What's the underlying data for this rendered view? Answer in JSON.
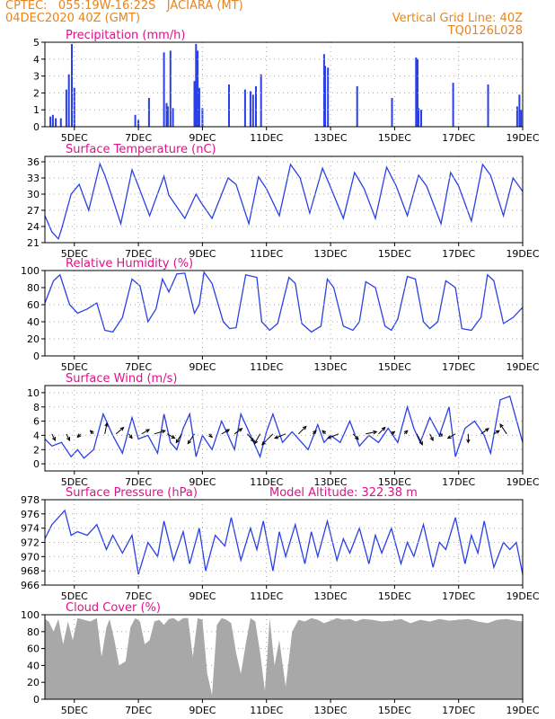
{
  "header": {
    "left_line1": "CPTEC:   055:19W-16:22S   JACIARA (MT)",
    "left_line2": "04DEC2020 40Z (GMT)",
    "right_line1": "Vertical Grid Line: 40Z",
    "right_line2": "TQ0126L028"
  },
  "colors": {
    "header": "#e8841a",
    "title": "#e0118a",
    "line": "#2a3fe6",
    "bar": "#2a3fe6",
    "cloud": "#a8a8a8",
    "grid": "#aaaaaa",
    "arrow": "#000000"
  },
  "x_axis": {
    "tick_labels": [
      "5DEC",
      "7DEC",
      "9DEC",
      "11DEC",
      "13DEC",
      "15DEC",
      "17DEC",
      "19DEC"
    ],
    "start_day": 4.08,
    "end_day": 19.0
  },
  "chart_data": [
    {
      "id": "precip",
      "type": "bar",
      "title": "Precipitation (mm/h)",
      "ylim": [
        0,
        5
      ],
      "yticks": [
        0,
        1,
        2,
        3,
        4,
        5
      ],
      "x": [
        4.25,
        4.33,
        4.42,
        4.58,
        4.75,
        4.83,
        4.92,
        5.0,
        6.9,
        7.0,
        7.33,
        7.8,
        7.88,
        7.92,
        8.0,
        8.08,
        8.75,
        8.8,
        8.85,
        8.9,
        9.0,
        9.83,
        10.33,
        10.5,
        10.58,
        10.67,
        10.83,
        12.8,
        12.83,
        12.92,
        13.83,
        14.92,
        15.67,
        15.72,
        15.75,
        15.83,
        16.83,
        17.92,
        18.83,
        18.9,
        18.95
      ],
      "values": [
        0.6,
        0.7,
        0.5,
        0.5,
        2.2,
        3.1,
        4.9,
        2.3,
        0.7,
        0.4,
        1.7,
        4.4,
        1.4,
        1.2,
        4.5,
        1.1,
        2.7,
        4.9,
        4.5,
        2.3,
        1.1,
        2.5,
        2.2,
        2.1,
        1.9,
        2.4,
        3.1,
        4.3,
        3.6,
        3.5,
        2.4,
        1.7,
        4.1,
        4.0,
        1.1,
        1.0,
        2.6,
        2.5,
        1.2,
        1.9,
        1.0
      ]
    },
    {
      "id": "temp",
      "type": "line",
      "title": "Surface Temperature (nC)",
      "ylim": [
        21,
        37
      ],
      "yticks": [
        21,
        24,
        27,
        30,
        33,
        36
      ],
      "x": [
        4.08,
        4.3,
        4.5,
        4.6,
        4.9,
        5.15,
        5.45,
        5.8,
        5.95,
        6.15,
        6.45,
        6.8,
        7.0,
        7.35,
        7.8,
        7.95,
        8.45,
        8.8,
        8.95,
        9.3,
        9.8,
        10.05,
        10.45,
        10.75,
        11.0,
        11.4,
        11.75,
        12.05,
        12.35,
        12.75,
        12.95,
        13.4,
        13.75,
        14.05,
        14.4,
        14.75,
        15.05,
        15.4,
        15.75,
        16.0,
        16.45,
        16.75,
        17.0,
        17.4,
        17.75,
        18.0,
        18.4,
        18.7,
        19.0
      ],
      "values": [
        26.0,
        23.0,
        21.7,
        23.5,
        30.0,
        31.8,
        27.0,
        35.6,
        33.5,
        30.0,
        24.5,
        34.5,
        31.5,
        26.0,
        33.3,
        29.8,
        25.5,
        30.0,
        28.5,
        25.5,
        33.0,
        31.8,
        24.5,
        33.2,
        31.0,
        26.0,
        35.5,
        33.0,
        26.5,
        34.8,
        32.0,
        25.5,
        34.0,
        31.0,
        25.5,
        35.0,
        31.5,
        26.0,
        33.5,
        31.5,
        24.5,
        34.0,
        31.5,
        25.0,
        35.5,
        33.5,
        26.0,
        33.0,
        30.5
      ]
    },
    {
      "id": "rh",
      "type": "line",
      "title": "Relative Humidity (%)",
      "ylim": [
        0,
        100
      ],
      "yticks": [
        0,
        20,
        40,
        60,
        80,
        100
      ],
      "x": [
        4.08,
        4.35,
        4.55,
        4.85,
        5.1,
        5.4,
        5.7,
        5.95,
        6.2,
        6.5,
        6.8,
        7.05,
        7.3,
        7.55,
        7.75,
        7.95,
        8.2,
        8.45,
        8.75,
        8.9,
        9.05,
        9.3,
        9.65,
        9.85,
        10.05,
        10.35,
        10.7,
        10.85,
        11.1,
        11.35,
        11.7,
        11.9,
        12.1,
        12.4,
        12.7,
        12.9,
        13.1,
        13.4,
        13.7,
        13.9,
        14.1,
        14.4,
        14.7,
        14.9,
        15.1,
        15.4,
        15.65,
        15.9,
        16.1,
        16.35,
        16.6,
        16.9,
        17.1,
        17.4,
        17.7,
        17.9,
        18.1,
        18.4,
        18.7,
        19.0
      ],
      "values": [
        62,
        88,
        95,
        60,
        50,
        55,
        62,
        30,
        28,
        45,
        90,
        82,
        40,
        55,
        90,
        75,
        96,
        97,
        50,
        60,
        98,
        85,
        40,
        32,
        33,
        95,
        92,
        40,
        30,
        38,
        92,
        85,
        38,
        28,
        35,
        90,
        80,
        35,
        30,
        40,
        87,
        80,
        35,
        30,
        43,
        93,
        90,
        40,
        32,
        40,
        88,
        80,
        32,
        30,
        45,
        95,
        88,
        38,
        45,
        57
      ]
    },
    {
      "id": "wind",
      "type": "line",
      "title": "Surface Wind (m/s)",
      "ylim": [
        -1,
        11
      ],
      "yticks": [
        0,
        2,
        4,
        6,
        8,
        10
      ],
      "x": [
        4.08,
        4.3,
        4.6,
        4.9,
        5.1,
        5.3,
        5.6,
        5.9,
        6.2,
        6.5,
        6.8,
        7.0,
        7.3,
        7.6,
        7.8,
        8.0,
        8.2,
        8.4,
        8.6,
        8.8,
        9.0,
        9.3,
        9.6,
        9.8,
        10.0,
        10.2,
        10.5,
        10.8,
        11.0,
        11.2,
        11.5,
        11.8,
        12.0,
        12.3,
        12.6,
        12.8,
        13.0,
        13.3,
        13.6,
        13.9,
        14.2,
        14.5,
        14.8,
        15.1,
        15.4,
        15.6,
        15.8,
        16.1,
        16.4,
        16.7,
        16.9,
        17.2,
        17.5,
        17.8,
        18.0,
        18.3,
        18.6,
        19.0
      ],
      "values": [
        3.5,
        2.5,
        3.0,
        1.0,
        2.0,
        0.8,
        2.0,
        7.0,
        4.0,
        1.5,
        6.5,
        3.5,
        4.0,
        1.5,
        7.0,
        3.0,
        2.0,
        5.0,
        7.0,
        1.0,
        4.0,
        2.0,
        6.0,
        4.0,
        2.0,
        7.0,
        4.0,
        1.0,
        4.5,
        7.0,
        3.0,
        4.5,
        3.5,
        2.0,
        5.5,
        3.0,
        4.0,
        3.0,
        6.0,
        2.5,
        4.0,
        3.0,
        5.0,
        3.0,
        8.0,
        5.0,
        3.0,
        6.5,
        4.0,
        8.0,
        1.0,
        5.0,
        6.0,
        4.0,
        1.5,
        9.0,
        9.5,
        3.0
      ],
      "vectors": {
        "x": [
          4.3,
          4.75,
          5.2,
          5.6,
          5.95,
          6.3,
          6.7,
          7.1,
          7.5,
          7.9,
          8.35,
          8.75,
          9.2,
          9.6,
          10.0,
          10.4,
          10.8,
          11.2,
          11.6,
          12.0,
          12.45,
          12.85,
          13.25,
          13.7,
          14.1,
          14.5,
          14.9,
          15.3,
          15.7,
          16.1,
          16.5,
          16.9,
          17.3,
          17.7,
          18.1,
          18.5
        ],
        "u": [
          0.3,
          0.3,
          -0.3,
          -0.3,
          0.2,
          0.7,
          0.3,
          0.7,
          1.0,
          0.7,
          -0.5,
          -0.6,
          0.3,
          0.7,
          0.7,
          0.6,
          -0.5,
          -1.0,
          -1.0,
          0.7,
          0.3,
          -0.3,
          -1.0,
          0.5,
          1.0,
          0.6,
          0.3,
          0.3,
          0.5,
          0.3,
          -0.3,
          -0.7,
          0.0,
          0.7,
          0.5,
          -0.6
        ],
        "v": [
          -0.6,
          -0.6,
          -0.3,
          0.3,
          1.0,
          0.6,
          -0.4,
          0.4,
          0.3,
          -0.4,
          -0.8,
          -0.9,
          -0.3,
          0.4,
          0.5,
          -0.7,
          -0.9,
          -1.0,
          -0.4,
          0.7,
          0.3,
          0.3,
          -0.4,
          -0.5,
          0.2,
          0.6,
          0.2,
          0.3,
          -1.0,
          -0.6,
          -0.2,
          -0.4,
          -0.8,
          0.5,
          0.3,
          0.9
        ]
      }
    },
    {
      "id": "pres",
      "type": "line",
      "title": "Surface Pressure (hPa)",
      "subtitle": "Model Altitude: 322.38 m",
      "ylim": [
        966,
        978
      ],
      "yticks": [
        966,
        968,
        970,
        972,
        974,
        976,
        978
      ],
      "x": [
        4.08,
        4.3,
        4.5,
        4.7,
        4.9,
        5.1,
        5.4,
        5.7,
        6.0,
        6.2,
        6.5,
        6.8,
        7.0,
        7.3,
        7.6,
        7.8,
        8.1,
        8.4,
        8.6,
        8.9,
        9.1,
        9.4,
        9.7,
        9.9,
        10.2,
        10.5,
        10.7,
        10.9,
        11.2,
        11.4,
        11.6,
        11.9,
        12.2,
        12.4,
        12.6,
        12.9,
        13.2,
        13.4,
        13.6,
        13.9,
        14.2,
        14.4,
        14.6,
        14.9,
        15.2,
        15.4,
        15.6,
        15.9,
        16.2,
        16.4,
        16.6,
        16.9,
        17.2,
        17.4,
        17.6,
        17.8,
        18.1,
        18.4,
        18.6,
        18.8,
        19.0
      ],
      "values": [
        972.5,
        974.5,
        975.5,
        976.5,
        973.0,
        973.5,
        973.0,
        974.5,
        971.0,
        973.0,
        970.5,
        973.0,
        967.5,
        972.0,
        970.0,
        975.0,
        969.5,
        973.5,
        969.0,
        974.0,
        968.0,
        973.0,
        971.5,
        975.5,
        969.5,
        974.0,
        971.0,
        975.0,
        968.0,
        973.5,
        970.0,
        974.5,
        969.0,
        973.5,
        970.0,
        975.0,
        969.5,
        972.5,
        970.5,
        974.0,
        969.0,
        973.0,
        970.5,
        974.0,
        969.0,
        972.0,
        970.0,
        974.5,
        968.5,
        972.0,
        971.0,
        975.5,
        969.0,
        973.0,
        970.5,
        975.0,
        968.5,
        972.0,
        971.0,
        972.0,
        967.5
      ]
    },
    {
      "id": "cloud",
      "type": "area",
      "title": "Cloud Cover (%)",
      "ylim": [
        0,
        100
      ],
      "yticks": [
        0,
        20,
        40,
        60,
        80,
        100
      ],
      "x": [
        4.08,
        4.2,
        4.35,
        4.5,
        4.65,
        4.8,
        4.95,
        5.1,
        5.3,
        5.5,
        5.7,
        5.85,
        6.0,
        6.1,
        6.25,
        6.4,
        6.6,
        6.75,
        6.9,
        7.05,
        7.2,
        7.35,
        7.5,
        7.65,
        7.8,
        7.95,
        8.1,
        8.25,
        8.4,
        8.55,
        8.7,
        8.85,
        9.0,
        9.15,
        9.3,
        9.45,
        9.6,
        9.75,
        9.9,
        10.05,
        10.2,
        10.35,
        10.5,
        10.65,
        10.8,
        10.95,
        11.1,
        11.25,
        11.4,
        11.6,
        11.8,
        12.0,
        12.2,
        12.4,
        12.6,
        12.8,
        13.0,
        13.2,
        13.4,
        13.6,
        13.8,
        14.0,
        14.3,
        14.6,
        14.9,
        15.2,
        15.5,
        15.8,
        16.1,
        16.4,
        16.7,
        17.0,
        17.3,
        17.6,
        17.9,
        18.2,
        18.5,
        18.8,
        19.0
      ],
      "values": [
        95,
        92,
        80,
        95,
        65,
        92,
        70,
        96,
        94,
        92,
        96,
        50,
        85,
        95,
        70,
        40,
        45,
        85,
        96,
        92,
        65,
        70,
        92,
        94,
        88,
        95,
        96,
        92,
        96,
        96,
        50,
        96,
        94,
        30,
        5,
        88,
        96,
        94,
        90,
        55,
        30,
        65,
        96,
        92,
        55,
        10,
        96,
        40,
        70,
        15,
        80,
        94,
        92,
        96,
        94,
        90,
        93,
        96,
        94,
        95,
        92,
        95,
        94,
        92,
        93,
        95,
        90,
        94,
        92,
        95,
        93,
        94,
        95,
        92,
        90,
        94,
        95,
        93,
        92
      ]
    }
  ]
}
